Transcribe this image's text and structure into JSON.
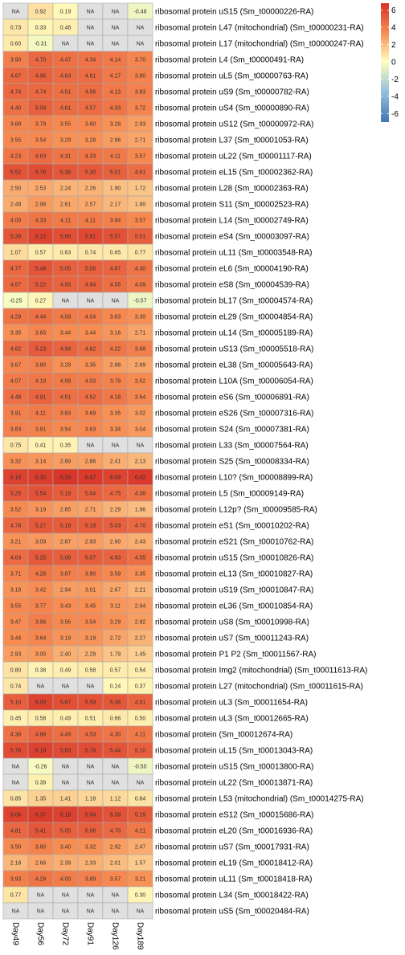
{
  "chart_data": {
    "type": "heatmap",
    "columns": [
      "Day49",
      "Day56",
      "Day72",
      "Day91",
      "Day126",
      "Day189"
    ],
    "rows": [
      {
        "label": "ribosomal protein uS15 (Sm_t00000226-RA)",
        "values": [
          null,
          0.92,
          0.19,
          null,
          null,
          -0.48
        ]
      },
      {
        "label": "ribosomal protein L47 (mitochondrial) (Sm_t00000231-RA)",
        "values": [
          0.73,
          0.33,
          0.48,
          null,
          null,
          null
        ]
      },
      {
        "label": "ribosomal protein L17 (mitochondrial) (Sm_t00000247-RA)",
        "values": [
          0.6,
          -0.31,
          null,
          null,
          null,
          null
        ]
      },
      {
        "label": "ribosomal protein L4 (Sm_t00000491-RA)",
        "values": [
          3.9,
          4.7,
          4.47,
          4.34,
          4.14,
          3.7
        ]
      },
      {
        "label": "ribosomal protein uL5 (Sm_t00000763-RA)",
        "values": [
          4.67,
          4.96,
          4.63,
          4.61,
          4.17,
          3.8
        ]
      },
      {
        "label": "ribosomal protein uS9 (Sm_t00000782-RA)",
        "values": [
          4.74,
          4.74,
          4.51,
          4.56,
          4.13,
          3.83
        ]
      },
      {
        "label": "ribosomal protein uS4 (Sm_t00000890-RA)",
        "values": [
          4.4,
          5.04,
          4.61,
          4.57,
          4.33,
          3.72
        ]
      },
      {
        "label": "ribosomal protein uS12 (Sm_t00000972-RA)",
        "values": [
          3.68,
          3.79,
          3.55,
          3.6,
          3.28,
          2.93
        ]
      },
      {
        "label": "ribosomal protein L37 (Sm_t00001053-RA)",
        "values": [
          3.55,
          3.54,
          3.29,
          3.28,
          2.96,
          2.71
        ]
      },
      {
        "label": "ribosomal protein uL22 (Sm_t00001117-RA)",
        "values": [
          4.23,
          4.63,
          4.31,
          4.33,
          4.11,
          3.57
        ]
      },
      {
        "label": "ribosomal protein eL15 (Sm_t00002362-RA)",
        "values": [
          5.52,
          5.76,
          5.38,
          5.3,
          5.01,
          4.61
        ]
      },
      {
        "label": "ribosomal protein L28 (Sm_t00002363-RA)",
        "values": [
          2.5,
          2.53,
          2.24,
          2.26,
          1.9,
          1.72
        ]
      },
      {
        "label": "ribosomal protein S11 (Sm_t00002523-RA)",
        "values": [
          2.48,
          2.98,
          2.61,
          2.57,
          2.17,
          1.9
        ]
      },
      {
        "label": "ribosomal protein L14 (Sm_t00002749-RA)",
        "values": [
          4.0,
          4.33,
          4.11,
          4.11,
          3.84,
          3.57
        ]
      },
      {
        "label": "ribosomal protein eS4 (Sm_t00003097-RA)",
        "values": [
          5.39,
          6.12,
          5.66,
          5.91,
          5.57,
          5.01
        ]
      },
      {
        "label": "ribosomal protein uL11 (Sm_t00003548-RA)",
        "values": [
          1.07,
          0.57,
          0.63,
          0.74,
          0.65,
          0.77
        ]
      },
      {
        "label": "ribosomal protein eL6 (Sm_t00004190-RA)",
        "values": [
          4.77,
          5.48,
          5.05,
          5.05,
          4.87,
          4.3
        ]
      },
      {
        "label": "ribosomal protein eS8 (Sm_t00004539-RA)",
        "values": [
          4.67,
          5.22,
          4.95,
          4.94,
          4.55,
          4.09
        ]
      },
      {
        "label": "ribosomal protein bL17 (Sm_t00004574-RA)",
        "values": [
          -0.25,
          0.27,
          null,
          null,
          null,
          -0.57
        ]
      },
      {
        "label": "ribosomal protein eL29 (Sm_t00004854-RA)",
        "values": [
          4.29,
          4.44,
          4.09,
          4.04,
          3.63,
          3.3
        ]
      },
      {
        "label": "ribosomal protein uL14 (Sm_t00005189-RA)",
        "values": [
          3.35,
          3.65,
          3.44,
          3.44,
          3.16,
          2.71
        ]
      },
      {
        "label": "ribosomal protein uS13 (Sm_t00005518-RA)",
        "values": [
          4.62,
          5.23,
          4.94,
          4.62,
          4.22,
          3.88
        ]
      },
      {
        "label": "ribosomal protein eL38 (Sm_t00005643-RA)",
        "values": [
          3.67,
          3.8,
          3.28,
          3.35,
          2.88,
          2.69
        ]
      },
      {
        "label": "ribosomal protein L10A (Sm_t00006054-RA)",
        "values": [
          4.07,
          4.19,
          4.08,
          4.03,
          3.79,
          3.52
        ]
      },
      {
        "label": "ribosomal protein eS6 (Sm_t00006891-RA)",
        "values": [
          4.48,
          4.91,
          4.51,
          4.52,
          4.18,
          3.64
        ]
      },
      {
        "label": "ribosomal protein eS26 (Sm_t00007316-RA)",
        "values": [
          3.91,
          4.11,
          3.83,
          3.69,
          3.35,
          3.02
        ]
      },
      {
        "label": "ribosomal protein S24 (Sm_t00007381-RA)",
        "values": [
          3.83,
          3.81,
          3.54,
          3.63,
          3.34,
          3.04
        ]
      },
      {
        "label": "ribosomal protein L33 (Sm_t00007564-RA)",
        "values": [
          0.75,
          0.41,
          0.35,
          null,
          null,
          null
        ]
      },
      {
        "label": "ribosomal protein S25 (Sm_t00008334-RA)",
        "values": [
          3.32,
          3.14,
          2.89,
          2.86,
          2.41,
          2.13
        ]
      },
      {
        "label": "ribosomal protein L10? (Sm_t00008899-RA)",
        "values": [
          6.16,
          6.3,
          6.59,
          6.47,
          6.09,
          6.42
        ]
      },
      {
        "label": "ribosomal protein L5 (Sm_t00009149-RA)",
        "values": [
          5.25,
          5.54,
          5.18,
          5.04,
          4.75,
          4.38
        ]
      },
      {
        "label": "ribosomal protein L12p? (Sm_t00009585-RA)",
        "values": [
          3.52,
          3.19,
          2.85,
          2.71,
          2.29,
          1.96
        ]
      },
      {
        "label": "ribosomal protein eS1 (Sm_t00010202-RA)",
        "values": [
          4.78,
          5.27,
          5.18,
          5.19,
          5.03,
          4.7
        ]
      },
      {
        "label": "ribosomal protein eS21 (Sm_t00010762-RA)",
        "values": [
          3.21,
          3.09,
          2.87,
          2.93,
          2.6,
          2.43
        ]
      },
      {
        "label": "ribosomal protein uS15 (Sm_t00010826-RA)",
        "values": [
          4.63,
          5.25,
          5.08,
          5.07,
          4.93,
          4.55
        ]
      },
      {
        "label": "ribosomal protein eL13 (Sm_t00010827-RA)",
        "values": [
          3.71,
          4.26,
          3.87,
          3.9,
          3.59,
          3.35
        ]
      },
      {
        "label": "ribosomal protein uS19 (Sm_t00010847-RA)",
        "values": [
          3.18,
          3.42,
          2.94,
          3.01,
          2.67,
          2.21
        ]
      },
      {
        "label": "ribosomal protein eL36 (Sm_t00010854-RA)",
        "values": [
          3.55,
          3.77,
          3.43,
          3.45,
          3.11,
          2.94
        ]
      },
      {
        "label": "ribosomal protein uS8 (Sm_t00010998-RA)",
        "values": [
          3.47,
          3.96,
          3.56,
          3.54,
          3.29,
          2.92
        ]
      },
      {
        "label": "ribosomal protein uS7 (Sm_t00011243-RA)",
        "values": [
          3.44,
          3.64,
          3.19,
          3.19,
          2.72,
          2.27
        ]
      },
      {
        "label": "ribosomal protein P1 P2 (Sm_t00011567-RA)",
        "values": [
          2.93,
          3.0,
          2.4,
          2.29,
          1.79,
          1.45
        ]
      },
      {
        "label": "ribosomal protein Img2 (mitochondrial) (Sm_t00011613-RA)",
        "values": [
          0.8,
          0.38,
          0.49,
          0.58,
          0.57,
          0.54
        ]
      },
      {
        "label": "ribosomal protein L27 (mitochondrial) (Sm_t00011615-RA)",
        "values": [
          0.74,
          null,
          null,
          null,
          0.24,
          0.37
        ]
      },
      {
        "label": "ribosomal protein uL3 (Sm_t00011654-RA)",
        "values": [
          5.1,
          6.09,
          5.67,
          5.59,
          5.36,
          4.91
        ]
      },
      {
        "label": "ribosomal protein uL3 (Sm_t00012665-RA)",
        "values": [
          0.45,
          0.58,
          0.49,
          0.51,
          0.66,
          0.5
        ]
      },
      {
        "label": "ribosomal protein (Sm_t00012674-RA)",
        "values": [
          4.38,
          4.86,
          4.49,
          4.53,
          4.3,
          4.11
        ]
      },
      {
        "label": "ribosomal protein uL15 (Sm_t00013043-RA)",
        "values": [
          5.76,
          6.19,
          5.83,
          5.79,
          5.44,
          5.1
        ]
      },
      {
        "label": "ribosomal protein uS15 (Sm_t00013800-RA)",
        "values": [
          null,
          -0.26,
          null,
          null,
          null,
          -0.5
        ]
      },
      {
        "label": "ribosomal protein uL22 (Sm_t00013871-RA)",
        "values": [
          null,
          0.39,
          null,
          null,
          null,
          null
        ]
      },
      {
        "label": "ribosomal protein L53 (mitochondrial) (Sm_t00014275-RA)",
        "values": [
          0.85,
          1.35,
          1.41,
          1.18,
          1.12,
          0.84
        ]
      },
      {
        "label": "ribosomal protein eS12 (Sm_t00015686-RA)",
        "values": [
          6.06,
          6.37,
          6.18,
          5.94,
          5.59,
          5.19
        ]
      },
      {
        "label": "ribosomal protein eL20 (Sm_t00016936-RA)",
        "values": [
          4.81,
          5.41,
          5.05,
          5.08,
          4.7,
          4.21
        ]
      },
      {
        "label": "ribosomal protein uS7 (Sm_t00017931-RA)",
        "values": [
          3.5,
          3.8,
          3.4,
          3.32,
          2.92,
          2.47
        ]
      },
      {
        "label": "ribosomal protein eL19 (Sm_t00018412-RA)",
        "values": [
          2.18,
          2.66,
          2.39,
          2.33,
          2.01,
          1.57
        ]
      },
      {
        "label": "ribosomal protein uL11 (Sm_t00018418-RA)",
        "values": [
          3.93,
          4.29,
          4.0,
          3.89,
          3.57,
          3.21
        ]
      },
      {
        "label": "ribosomal protein L34 (Sm_t00018422-RA)",
        "values": [
          0.77,
          null,
          null,
          null,
          null,
          0.3
        ]
      },
      {
        "label": "ribosomal protein uS5 (Sm_t00020484-RA)",
        "values": [
          null,
          null,
          null,
          null,
          null,
          null
        ]
      }
    ],
    "na_label": "NA",
    "na_color": "#e0e0e0",
    "legend": {
      "ticks": [
        "6",
        "4",
        "2",
        "0",
        "-2",
        "-4",
        "-6"
      ],
      "tick_values": [
        6,
        4,
        2,
        0,
        -2,
        -4,
        -6
      ],
      "range": [
        -7,
        6.8
      ],
      "placement": "top-right",
      "colors": {
        "high": "#d73027",
        "mid": "#ffffbf",
        "low": "#4575b4"
      }
    },
    "grid": true
  }
}
